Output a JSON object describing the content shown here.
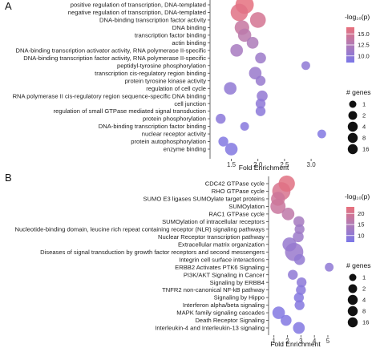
{
  "chart_data": [
    {
      "type": "scatter",
      "panel_label": "A",
      "xlabel": "Fold Enrichment",
      "xlim": [
        1.1,
        3.3
      ],
      "xticks": [
        "1.5",
        "2.0",
        "2.5",
        "3.0"
      ],
      "color_legend": {
        "title": "-log10(p)",
        "ticks": [
          "15.0",
          "12.5",
          "10.0"
        ],
        "range": [
          8.5,
          16.5
        ]
      },
      "size_legend": {
        "title": "# genes",
        "ticks": [
          "1",
          "2",
          "4",
          "8",
          "16"
        ]
      },
      "categories": [
        "positive regulation of transcription, DNA-templated",
        "negative regulation of transcription, DNA-templated",
        "DNA-binding transcription factor activity",
        "DNA binding",
        "transcription factor binding",
        "actin binding",
        "DNA-binding transcription activator activity, RNA polymerase II-specific",
        "DNA-binding transcription factor activity, RNA polymerase II-specific",
        "peptidyl-tyrosine phosphorylation",
        "transcription cis-regulatory region binding",
        "protein tyrosine kinase activity",
        "regulation of cell cycle",
        "RNA polymerase II cis-regulatory region sequence-specific DNA binding",
        "cell junction",
        "regulation of small GTPase mediated signal transduction",
        "protein phosphorylation",
        "DNA-binding transcription factor binding",
        "nuclear receptor activity",
        "protein autophosphorylation",
        "enzyme binding"
      ],
      "points": [
        {
          "x": 1.75,
          "log_p": 16.3,
          "genes": 16
        },
        {
          "x": 1.65,
          "log_p": 15.9,
          "genes": 14
        },
        {
          "x": 2.0,
          "log_p": 15.0,
          "genes": 11
        },
        {
          "x": 1.7,
          "log_p": 14.0,
          "genes": 9
        },
        {
          "x": 1.75,
          "log_p": 13.2,
          "genes": 7
        },
        {
          "x": 1.9,
          "log_p": 12.3,
          "genes": 5
        },
        {
          "x": 1.6,
          "log_p": 11.8,
          "genes": 6
        },
        {
          "x": 2.05,
          "log_p": 11.0,
          "genes": 4
        },
        {
          "x": 2.9,
          "log_p": 10.0,
          "genes": 2
        },
        {
          "x": 1.95,
          "log_p": 10.8,
          "genes": 6
        },
        {
          "x": 2.05,
          "log_p": 10.6,
          "genes": 3
        },
        {
          "x": 1.48,
          "log_p": 10.1,
          "genes": 6
        },
        {
          "x": 2.08,
          "log_p": 10.3,
          "genes": 4
        },
        {
          "x": 2.05,
          "log_p": 9.9,
          "genes": 3
        },
        {
          "x": 2.05,
          "log_p": 9.7,
          "genes": 3
        },
        {
          "x": 1.3,
          "log_p": 9.7,
          "genes": 3
        },
        {
          "x": 1.75,
          "log_p": 9.4,
          "genes": 2
        },
        {
          "x": 3.2,
          "log_p": 9.0,
          "genes": 2
        },
        {
          "x": 1.35,
          "log_p": 9.0,
          "genes": 3
        },
        {
          "x": 1.5,
          "log_p": 9.1,
          "genes": 6
        }
      ]
    },
    {
      "type": "scatter",
      "panel_label": "B",
      "xlabel": "Fold Enrichment",
      "xlim": [
        0.6,
        5.3
      ],
      "xticks": [
        "1",
        "2",
        "3",
        "4",
        "5"
      ],
      "color_legend": {
        "title": "-log10(p)",
        "ticks": [
          "20",
          "15",
          "10"
        ],
        "range": [
          7,
          23
        ]
      },
      "size_legend": {
        "title": "# genes",
        "ticks": [
          "1",
          "2",
          "4",
          "8",
          "16"
        ]
      },
      "categories": [
        "CDC42 GTPase cycle",
        "RHO GTPase cycle",
        "SUMO E3 ligases SUMOylate target proteins",
        "SUMOylation",
        "RAC1 GTPase cycle",
        "SUMOylation of intracellular receptors",
        "Nucleotide-binding domain, leucine rich repeat containing receptor (NLR) signaling pathways",
        "Nuclear Receptor transcription pathway",
        "Extracellular matrix organization",
        "Diseases of signal transduction by growth factor receptors and second messengers",
        "Integrin cell surface interactions",
        "ERBB2 Activates PTK6 Signaling",
        "PI3K/AKT Signaling in Cancer",
        "Signaling by ERBB4",
        "TNFR2 non-canonical NF-kB pathway",
        "Signaling by Hippo",
        "Interferon alpha/beta signaling",
        "MAPK family signaling cascades",
        "Death Receptor Signaling",
        "Interleukin-4 and Interleukin-13 signaling"
      ],
      "points": [
        {
          "x": 1.95,
          "log_p": 22.0,
          "genes": 12
        },
        {
          "x": 1.55,
          "log_p": 20.5,
          "genes": 16
        },
        {
          "x": 1.3,
          "log_p": 19.0,
          "genes": 8
        },
        {
          "x": 1.3,
          "log_p": 18.5,
          "genes": 10
        },
        {
          "x": 2.05,
          "log_p": 17.0,
          "genes": 6
        },
        {
          "x": 2.85,
          "log_p": 13.5,
          "genes": 4
        },
        {
          "x": 2.9,
          "log_p": 12.5,
          "genes": 3
        },
        {
          "x": 2.8,
          "log_p": 12.0,
          "genes": 4
        },
        {
          "x": 2.15,
          "log_p": 11.0,
          "genes": 8
        },
        {
          "x": 2.5,
          "log_p": 11.5,
          "genes": 16
        },
        {
          "x": 2.9,
          "log_p": 10.5,
          "genes": 4
        },
        {
          "x": 5.1,
          "log_p": 10.0,
          "genes": 2
        },
        {
          "x": 2.4,
          "log_p": 10.0,
          "genes": 3
        },
        {
          "x": 3.05,
          "log_p": 9.5,
          "genes": 3
        },
        {
          "x": 3.0,
          "log_p": 9.0,
          "genes": 3
        },
        {
          "x": 2.85,
          "log_p": 8.5,
          "genes": 3
        },
        {
          "x": 2.9,
          "log_p": 8.5,
          "genes": 3
        },
        {
          "x": 1.35,
          "log_p": 8.0,
          "genes": 6
        },
        {
          "x": 1.9,
          "log_p": 8.0,
          "genes": 4
        },
        {
          "x": 2.85,
          "log_p": 8.0,
          "genes": 5
        }
      ]
    }
  ]
}
